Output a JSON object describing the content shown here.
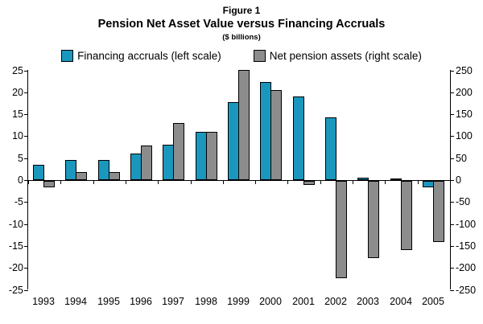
{
  "figure": {
    "label": "Figure 1",
    "title": "Pension Net Asset Value versus Financing Accruals",
    "subtitle": "($ billions)"
  },
  "chart_data": {
    "type": "bar",
    "figure_label": "Figure 1",
    "title": "Pension Net Asset Value versus Financing Accruals",
    "subtitle": "($ billions)",
    "legend_position": "top",
    "grid": false,
    "categories": [
      "1993",
      "1994",
      "1995",
      "1996",
      "1997",
      "1998",
      "1999",
      "2000",
      "2001",
      "2002",
      "2003",
      "2004",
      "2005"
    ],
    "series": [
      {
        "name": "Financing accruals (left scale)",
        "axis": "left",
        "color": "#1B97BE",
        "values": [
          3.5,
          4.5,
          4.5,
          6,
          8,
          11,
          17.8,
          22.3,
          19,
          14.3,
          0.5,
          0.4,
          -1.5
        ]
      },
      {
        "name": "Net pension assets (right scale)",
        "axis": "right",
        "color": "#8C8C8C",
        "values": [
          -15,
          18,
          18,
          78,
          130,
          110,
          250,
          205,
          -10,
          -222,
          -175,
          -157,
          -140
        ]
      }
    ],
    "left_axis": {
      "min": -25,
      "max": 25,
      "step": 5,
      "ticks": [
        25,
        20,
        15,
        10,
        5,
        0,
        -5,
        -10,
        -15,
        -20,
        -25
      ]
    },
    "right_axis": {
      "min": -250,
      "max": 250,
      "step": 50,
      "ticks": [
        250,
        200,
        150,
        100,
        50,
        0,
        -50,
        -100,
        -150,
        -200,
        -250
      ]
    }
  }
}
